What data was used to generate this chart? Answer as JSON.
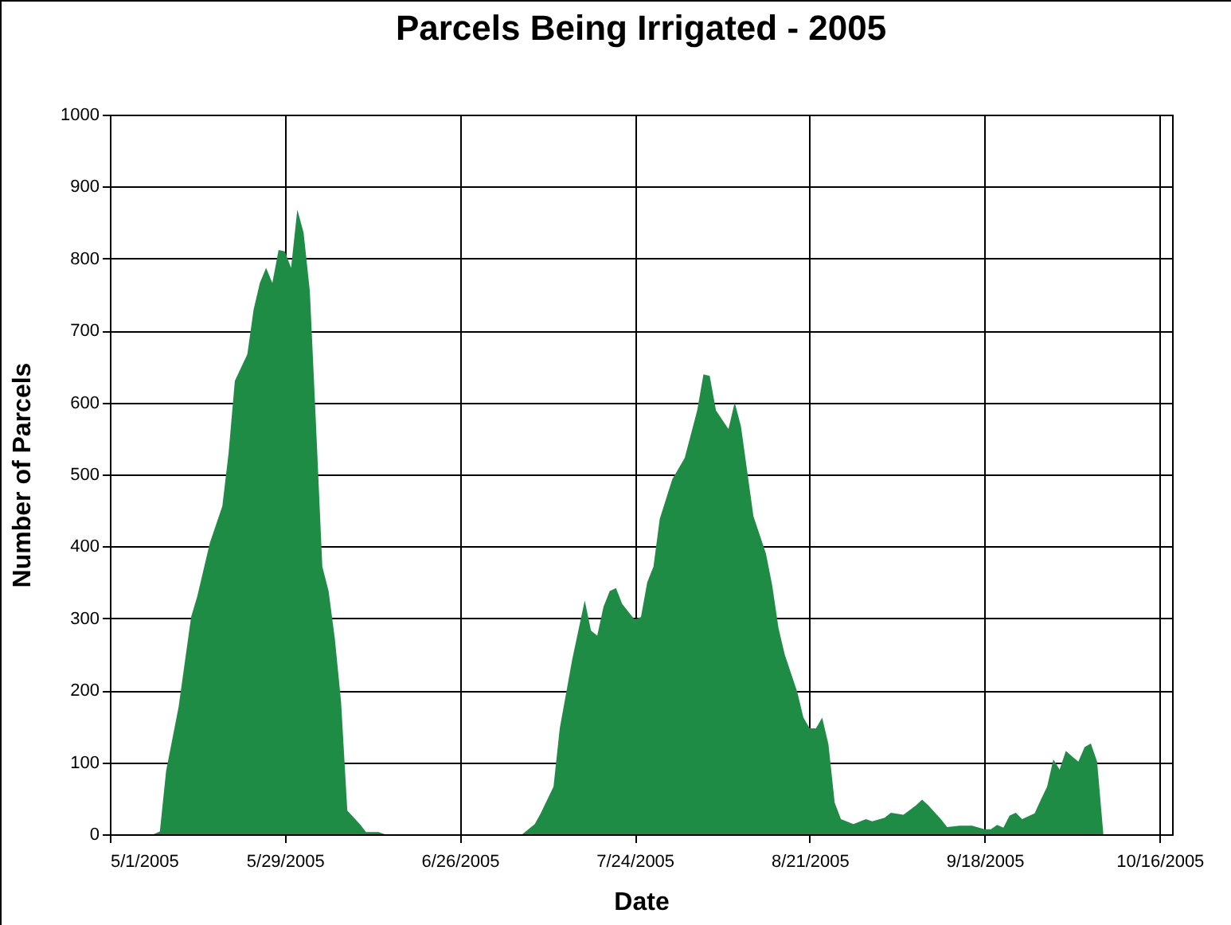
{
  "chart_data": {
    "type": "area",
    "title": "Parcels Being Irrigated - 2005",
    "xlabel": "Date",
    "ylabel": "Number of Parcels",
    "x": [
      "2005-05-01",
      "2005-05-08",
      "2005-05-09",
      "2005-05-10",
      "2005-05-12",
      "2005-05-14",
      "2005-05-15",
      "2005-05-17",
      "2005-05-19",
      "2005-05-20",
      "2005-05-21",
      "2005-05-23",
      "2005-05-24",
      "2005-05-25",
      "2005-05-26",
      "2005-05-27",
      "2005-05-28",
      "2005-05-29",
      "2005-05-30",
      "2005-05-31",
      "2005-06-01",
      "2005-06-02",
      "2005-06-03",
      "2005-06-04",
      "2005-06-05",
      "2005-06-06",
      "2005-06-07",
      "2005-06-08",
      "2005-06-10",
      "2005-06-11",
      "2005-06-13",
      "2005-06-14",
      "2005-07-06",
      "2005-07-08",
      "2005-07-09",
      "2005-07-11",
      "2005-07-12",
      "2005-07-14",
      "2005-07-16",
      "2005-07-17",
      "2005-07-18",
      "2005-07-19",
      "2005-07-20",
      "2005-07-21",
      "2005-07-22",
      "2005-07-24",
      "2005-07-25",
      "2005-07-26",
      "2005-07-27",
      "2005-07-28",
      "2005-07-30",
      "2005-08-01",
      "2005-08-03",
      "2005-08-04",
      "2005-08-05",
      "2005-08-06",
      "2005-08-08",
      "2005-08-09",
      "2005-08-10",
      "2005-08-12",
      "2005-08-14",
      "2005-08-15",
      "2005-08-16",
      "2005-08-17",
      "2005-08-19",
      "2005-08-20",
      "2005-08-21",
      "2005-08-22",
      "2005-08-23",
      "2005-08-24",
      "2005-08-25",
      "2005-08-26",
      "2005-08-28",
      "2005-08-30",
      "2005-08-31",
      "2005-09-02",
      "2005-09-03",
      "2005-09-05",
      "2005-09-07",
      "2005-09-08",
      "2005-09-09",
      "2005-09-11",
      "2005-09-12",
      "2005-09-14",
      "2005-09-16",
      "2005-09-18",
      "2005-09-19",
      "2005-09-20",
      "2005-09-21",
      "2005-09-22",
      "2005-09-23",
      "2005-09-24",
      "2005-09-26",
      "2005-09-27",
      "2005-09-28",
      "2005-09-29",
      "2005-09-30",
      "2005-10-01",
      "2005-10-02",
      "2005-10-03",
      "2005-10-04",
      "2005-10-05",
      "2005-10-06",
      "2005-10-07",
      "2005-10-18"
    ],
    "series": [
      {
        "color": "#1f8c46",
        "values": [
          0,
          0,
          4,
          88,
          177,
          302,
          331,
          405,
          456,
          530,
          630,
          667,
          729,
          766,
          787,
          766,
          812,
          810,
          787,
          868,
          836,
          755,
          567,
          372,
          338,
          272,
          184,
          33,
          14,
          3,
          3,
          0,
          0,
          14,
          30,
          66,
          147,
          243,
          325,
          283,
          276,
          316,
          338,
          342,
          320,
          298,
          302,
          350,
          372,
          438,
          493,
          523,
          589,
          639,
          637,
          589,
          563,
          600,
          567,
          442,
          390,
          346,
          287,
          250,
          198,
          162,
          147,
          147,
          162,
          125,
          44,
          21,
          14,
          21,
          18,
          23,
          30,
          27,
          40,
          48,
          40,
          21,
          10,
          12,
          12,
          7,
          7,
          13,
          9,
          26,
          30,
          21,
          29,
          48,
          66,
          104,
          90,
          116,
          108,
          101,
          121,
          126,
          101,
          0,
          0
        ]
      }
    ],
    "xlim": [
      "2005-05-01",
      "2005-10-18"
    ],
    "xticks": [
      {
        "value": "2005-05-01",
        "label": "5/1/2005"
      },
      {
        "value": "2005-05-29",
        "label": "5/29/2005"
      },
      {
        "value": "2005-06-26",
        "label": "6/26/2005"
      },
      {
        "value": "2005-07-24",
        "label": "7/24/2005"
      },
      {
        "value": "2005-08-21",
        "label": "8/21/2005"
      },
      {
        "value": "2005-09-18",
        "label": "9/18/2005"
      },
      {
        "value": "2005-10-16",
        "label": "10/16/2005"
      }
    ],
    "ylim": [
      0,
      1000
    ],
    "yticks": [
      0,
      100,
      200,
      300,
      400,
      500,
      600,
      700,
      800,
      900,
      1000
    ],
    "grid": true
  }
}
